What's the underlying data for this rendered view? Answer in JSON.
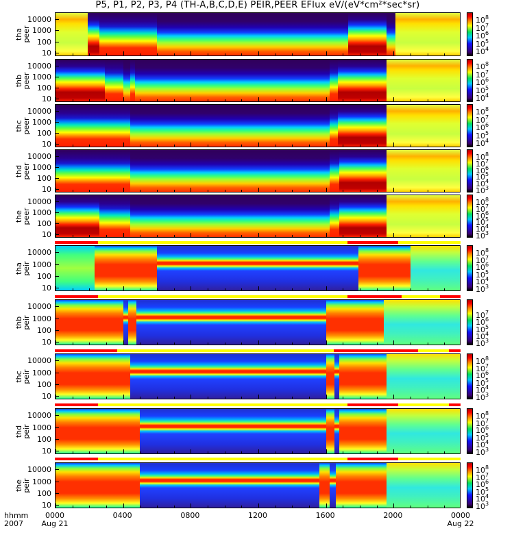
{
  "chart_data": {
    "type": "heatmap",
    "title": "P5, P1, P2, P3, P4 (TH-A,B,C,D,E) PEIR,PEER EFlux eV/(eV*cm²*sec*sr)",
    "xlabel": [
      "hhmm",
      "2007"
    ],
    "x_ticks": [
      {
        "label": "0000",
        "sub": "Aug 21",
        "hour": 0
      },
      {
        "label": "0400",
        "sub": "",
        "hour": 4
      },
      {
        "label": "0800",
        "sub": "",
        "hour": 8
      },
      {
        "label": "1200",
        "sub": "",
        "hour": 12
      },
      {
        "label": "1600",
        "sub": "",
        "hour": 16
      },
      {
        "label": "2000",
        "sub": "",
        "hour": 20
      },
      {
        "label": "0000",
        "sub": "Aug 22",
        "hour": 24
      }
    ],
    "xlim_hours": [
      0,
      24
    ],
    "y_ticks": [
      "10",
      "100",
      "1000",
      "10000"
    ],
    "y_tick_values": [
      10,
      100,
      1000,
      10000
    ],
    "ylim": [
      7,
      30000
    ],
    "y_scale": "log",
    "panels": [
      {
        "probe": "tha",
        "instrument": "peer",
        "cbar": [
          "8",
          "7",
          "6",
          "5",
          "4"
        ]
      },
      {
        "probe": "thb",
        "instrument": "peer",
        "cbar": [
          "8",
          "7",
          "6",
          "5",
          "4"
        ]
      },
      {
        "probe": "thc",
        "instrument": "peer",
        "cbar": [
          "8",
          "7",
          "6",
          "5",
          "4"
        ]
      },
      {
        "probe": "thd",
        "instrument": "peer",
        "cbar": [
          "8",
          "7",
          "6",
          "5",
          "4",
          "3"
        ]
      },
      {
        "probe": "the",
        "instrument": "peer",
        "cbar": [
          "8",
          "7",
          "6",
          "5",
          "4",
          "3"
        ]
      },
      {
        "probe": "tha",
        "instrument": "peir",
        "cbar": [
          "8",
          "7",
          "6",
          "5",
          "4",
          "3"
        ]
      },
      {
        "probe": "thb",
        "instrument": "peir",
        "cbar": [
          "7",
          "6",
          "5",
          "4",
          "3"
        ]
      },
      {
        "probe": "thc",
        "instrument": "peir",
        "cbar": [
          "8",
          "7",
          "6",
          "5",
          "4",
          "3"
        ]
      },
      {
        "probe": "thd",
        "instrument": "peir",
        "cbar": [
          "8",
          "7",
          "6",
          "5",
          "4",
          "3"
        ]
      },
      {
        "probe": "the",
        "instrument": "peir",
        "cbar": [
          "8",
          "7",
          "6",
          "5",
          "4",
          "3"
        ]
      }
    ],
    "cbar_base": "10",
    "flag_bars": [
      {
        "red_hours": [
          [
            0,
            2.55
          ],
          [
            17.3,
            20.3
          ]
        ]
      },
      {
        "red_hours": [
          [
            0,
            2.55
          ],
          [
            17.3,
            20.5
          ],
          [
            22.8,
            24
          ]
        ]
      },
      {
        "red_hours": [
          [
            0,
            3.7
          ],
          [
            16.5,
            21.5
          ],
          [
            23.3,
            24
          ]
        ]
      },
      {
        "red_hours": [
          [
            0,
            2.55
          ],
          [
            17.3,
            20.3
          ],
          [
            23.3,
            24
          ]
        ]
      },
      {
        "red_hours": [
          [
            0,
            2.55
          ],
          [
            17.3,
            20.3
          ]
        ]
      }
    ],
    "colors": {
      "flag_on": "#ff0000",
      "flag_off": "#ffff00"
    }
  }
}
